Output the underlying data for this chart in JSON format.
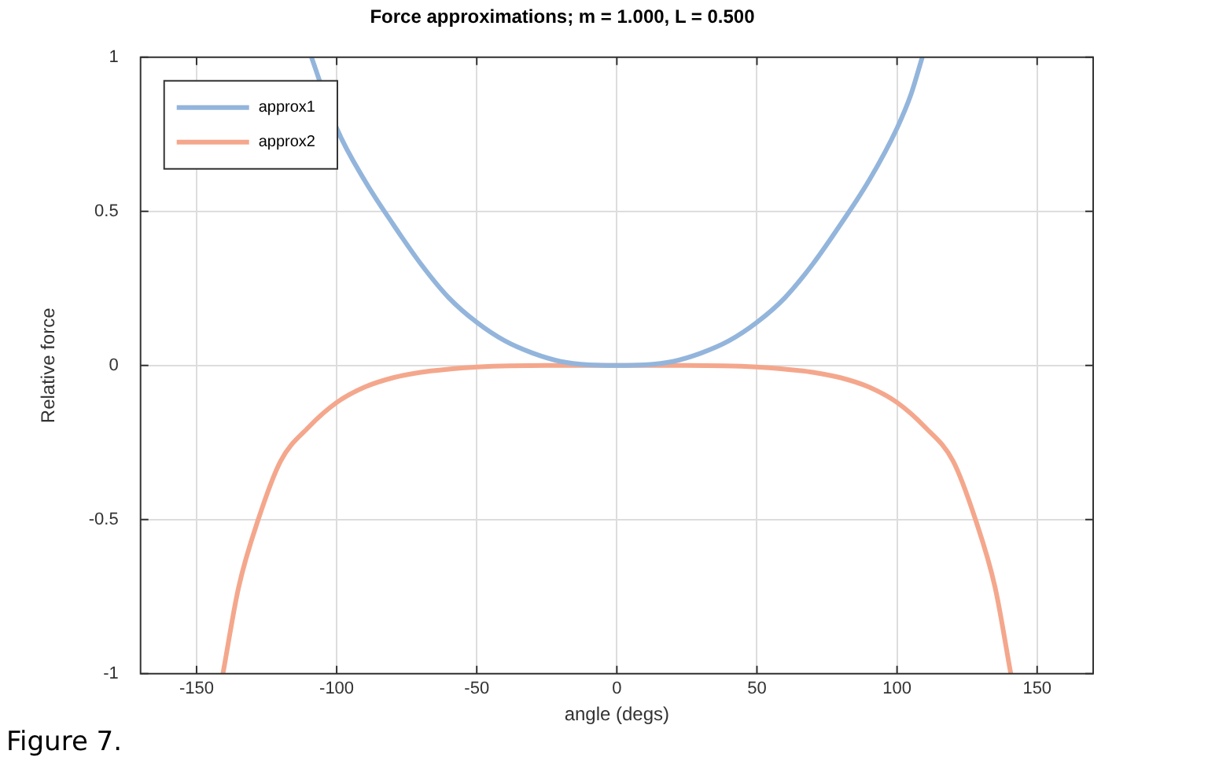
{
  "chart_data": {
    "type": "line",
    "title": "Force approximations; m = 1.000, L = 0.500",
    "xlabel": "angle (degs)",
    "ylabel": "Relative force",
    "xlim": [
      -170,
      170
    ],
    "xticks": [
      -150,
      -100,
      -50,
      0,
      50,
      100,
      150
    ],
    "ylim": [
      -1,
      1
    ],
    "yticks": [
      -1,
      -0.5,
      0,
      0.5,
      1
    ],
    "grid": true,
    "legend": "top left",
    "marker": "none",
    "line_style": "solid",
    "annotations": [
      "Figure 7."
    ],
    "series": [
      {
        "name": "approx1",
        "color": "#93b5dc",
        "x": [
          -109,
          -105,
          -100,
          -90,
          -80,
          -70,
          -60,
          -50,
          -40,
          -30,
          -20,
          -10,
          0,
          10,
          20,
          30,
          40,
          50,
          60,
          70,
          80,
          90,
          100,
          105,
          109
        ],
        "values": [
          1,
          null,
          0.77,
          0.6,
          0.46,
          0.33,
          0.22,
          0.14,
          0.08,
          0.04,
          0.013,
          0.002,
          0,
          0.002,
          0.013,
          0.04,
          0.08,
          0.14,
          0.22,
          0.33,
          0.46,
          0.6,
          0.77,
          0.88,
          1
        ]
      },
      {
        "name": "approx2",
        "color": "#f4a78c",
        "x": [
          -140.6,
          -135,
          -128,
          -120,
          -110,
          -100,
          -90,
          -80,
          -70,
          -60,
          -50,
          -25,
          0,
          25,
          50,
          60,
          70,
          80,
          90,
          100,
          110,
          120,
          128,
          135,
          140.6
        ],
        "values": [
          -1,
          -0.72,
          -0.5,
          -0.31,
          -0.2,
          -0.12,
          -0.07,
          -0.04,
          -0.022,
          -0.012,
          -0.005,
          0,
          0,
          0,
          -0.005,
          -0.012,
          -0.022,
          -0.04,
          -0.07,
          -0.12,
          -0.2,
          -0.31,
          -0.5,
          -0.72,
          -1
        ]
      }
    ]
  }
}
